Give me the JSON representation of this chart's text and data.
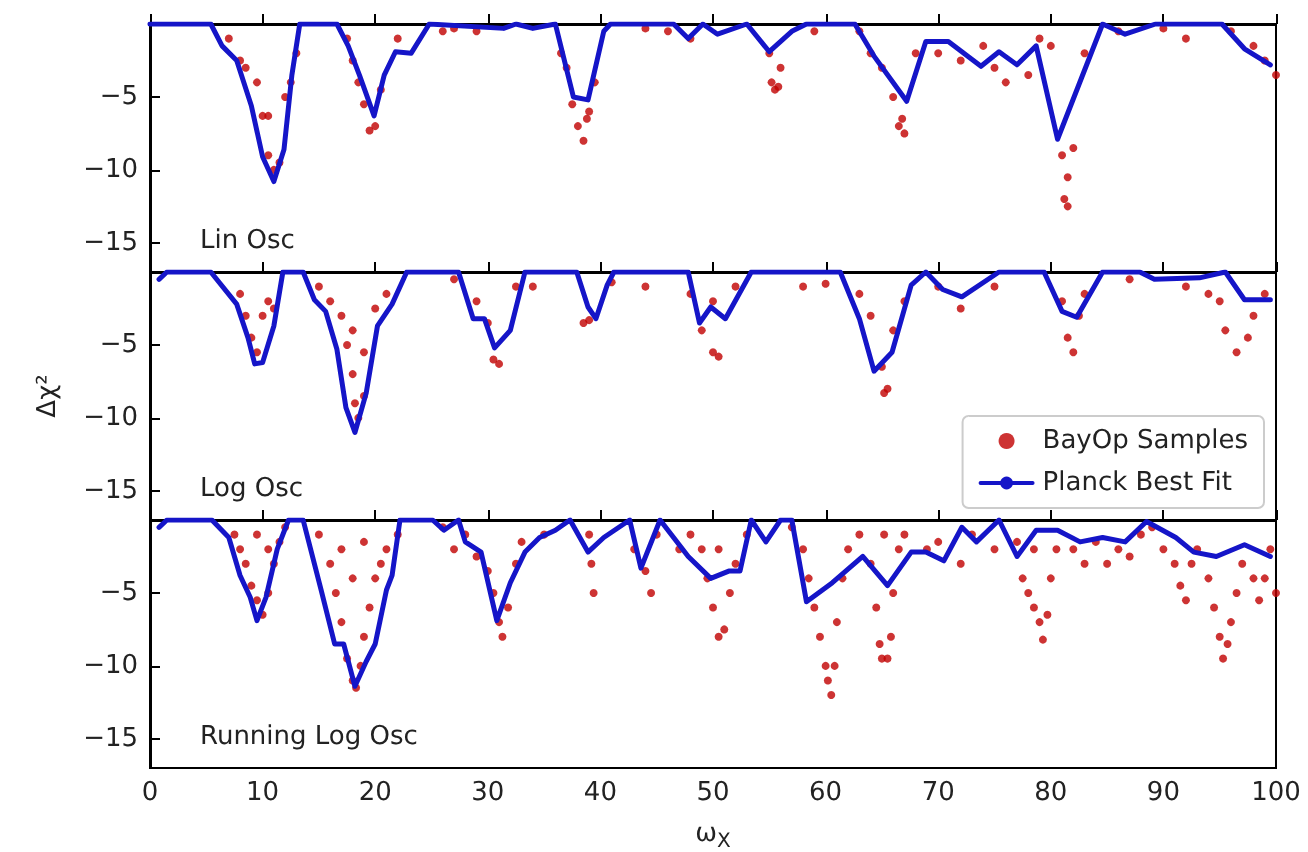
{
  "chart_data": [
    {
      "type": "scatter",
      "xlim": [
        0,
        100
      ],
      "xticks": [
        0,
        10,
        20,
        30,
        40,
        50,
        60,
        70,
        80,
        90,
        100
      ],
      "ylim": [
        -17,
        0
      ],
      "yticks": [
        -5,
        -10,
        -15
      ],
      "tick_labels": "y",
      "annotations": [
        "Lin Osc"
      ],
      "series": [
        {
          "type": "scatter",
          "color": "#c00000",
          "x": [
            7,
            8,
            8.5,
            9.5,
            10,
            10.5,
            10.5,
            11,
            11.5,
            12,
            12.5,
            13,
            17.5,
            18,
            18.5,
            19.5,
            20,
            20.5,
            19,
            22,
            26,
            27,
            29,
            36.5,
            37,
            37.5,
            38,
            38.5,
            39,
            38.8,
            39.5,
            44,
            46,
            48,
            55,
            55.2,
            55.5,
            55.8,
            56,
            59,
            63,
            64,
            65,
            66,
            66.5,
            67,
            66.8,
            68,
            70,
            72,
            74,
            75,
            76,
            78,
            79,
            80,
            81,
            81.5,
            81.2,
            81.5,
            82,
            83,
            86,
            90,
            92,
            96,
            98,
            99,
            100
          ],
          "values": [
            -1,
            -2.5,
            -3,
            -4,
            -6.3,
            -6.3,
            -9,
            -10,
            -9.5,
            -5,
            -4,
            -2,
            -1,
            -2.5,
            -4,
            -7.3,
            -7,
            -4.5,
            -5.5,
            -1,
            -0.5,
            -0.3,
            -0.5,
            -2,
            -3,
            -5.5,
            -7,
            -8,
            -6,
            -6.5,
            -4,
            -0.3,
            -0.5,
            -1,
            -2,
            -4,
            -4.5,
            -4.3,
            -3,
            -0.5,
            -0.5,
            -2,
            -3,
            -5,
            -7,
            -7.5,
            -6.5,
            -2,
            -2,
            -2.5,
            -1.5,
            -3,
            -4,
            -3.5,
            -1,
            -1.5,
            -9,
            -10.5,
            -12,
            -12.5,
            -8.5,
            -2,
            -0.5,
            -0.3,
            -1,
            -0.5,
            -1.5,
            -2.5,
            -3.5
          ]
        },
        {
          "type": "line",
          "color": "#1515c8",
          "x": [
            0,
            5.4,
            6.4,
            7.7,
            9,
            10,
            11,
            11.9,
            12.6,
            13.3,
            16.6,
            17.6,
            18.6,
            19.9,
            20.8,
            21.8,
            23.2,
            24.8,
            31.4,
            32.5,
            34,
            36,
            37.6,
            38.9,
            40.3,
            40.9,
            46.5,
            47.8,
            49.1,
            50.4,
            53,
            55,
            57,
            58.3,
            62.6,
            64.3,
            67.2,
            68.9,
            70.9,
            73.8,
            75.4,
            77,
            78.7,
            80.6,
            84.6,
            86.6,
            89.3,
            95.2,
            97.2,
            99.5
          ],
          "values": [
            0,
            0,
            -1.5,
            -2.5,
            -5.6,
            -9.1,
            -10.8,
            -8.6,
            -3.5,
            0,
            0,
            -1.5,
            -3.5,
            -6.3,
            -3.5,
            -1.9,
            -2,
            0,
            -0.3,
            0,
            -0.3,
            0,
            -5,
            -5.2,
            -0.5,
            0,
            0,
            -1,
            0,
            -0.7,
            0,
            -1.9,
            -0.5,
            0,
            0,
            -2.2,
            -5.3,
            -1.2,
            -1.2,
            -2.9,
            -1.9,
            -2.8,
            -1.5,
            -7.9,
            0,
            -0.7,
            0,
            0,
            -1.7,
            -2.8
          ]
        }
      ]
    },
    {
      "type": "scatter",
      "xlim": [
        0,
        100
      ],
      "xticks": [
        0,
        10,
        20,
        30,
        40,
        50,
        60,
        70,
        80,
        90,
        100
      ],
      "ylim": [
        -17,
        0
      ],
      "yticks": [
        -5,
        -10,
        -15
      ],
      "tick_labels": "y",
      "ylabel": "Δχ²",
      "annotations": [
        "Log Osc"
      ],
      "legend": "bottom right",
      "series": [
        {
          "name": "BayOp Samples",
          "type": "scatter",
          "color": "#c00000",
          "x": [
            8,
            8.5,
            9,
            9.5,
            10,
            10.5,
            11,
            15,
            16,
            17,
            17.5,
            18,
            18.2,
            18.5,
            19,
            19,
            18,
            20,
            21,
            27,
            29,
            30,
            30.5,
            31,
            32.5,
            34,
            38.5,
            39,
            41,
            44,
            48,
            49,
            50,
            50.5,
            50,
            52,
            58,
            60,
            63,
            64,
            65,
            65.5,
            65.2,
            66,
            67,
            70,
            72,
            75,
            81,
            81.5,
            82,
            82.5,
            83,
            87,
            92,
            94,
            95,
            95.5,
            96.5,
            97.5,
            98,
            99
          ],
          "values": [
            -1.5,
            -3,
            -4.5,
            -5.5,
            -3,
            -2,
            -2.5,
            -1,
            -2,
            -3,
            -5,
            -7,
            -9,
            -10,
            -8.5,
            -5.5,
            -4,
            -2.5,
            -1.5,
            -0.5,
            -2,
            -3.5,
            -6,
            -6.3,
            -1,
            -1,
            -3.5,
            -3.3,
            -0.7,
            -1,
            -1.5,
            -4,
            -5.5,
            -5.8,
            -2,
            -1,
            -1,
            -0.8,
            -1.5,
            -3,
            -6.5,
            -8,
            -8.3,
            -4,
            -2,
            -1,
            -2.5,
            -1,
            -2,
            -4.5,
            -5.5,
            -3,
            -1.5,
            -0.5,
            -1,
            -1.5,
            -2,
            -4,
            -5.5,
            -4.5,
            -3,
            -1.5
          ]
        },
        {
          "name": "Planck Best Fit",
          "type": "line",
          "color": "#1515c8",
          "x": [
            0.8,
            1.5,
            5.4,
            7.7,
            8.7,
            9.3,
            10,
            11,
            11.8,
            13.6,
            14.6,
            15.6,
            16.6,
            17.4,
            18.2,
            19.2,
            20.2,
            21.5,
            22.8,
            27.4,
            28.7,
            29.7,
            30.6,
            32,
            33.3,
            37.9,
            38.9,
            39.6,
            40.6,
            41.2,
            47.8,
            48.8,
            49.8,
            51.1,
            53.4,
            61.3,
            63,
            64.3,
            65.9,
            67.6,
            68.9,
            70.4,
            72.1,
            75.4,
            79.4,
            81,
            82.3,
            84.6,
            87.9,
            89.2,
            93.2,
            95.5,
            97.2,
            99.5
          ],
          "values": [
            -0.5,
            0,
            0,
            -2.2,
            -4.5,
            -6.3,
            -6.2,
            -3.7,
            0,
            0,
            -1.9,
            -2.7,
            -5.3,
            -9.3,
            -11,
            -8.3,
            -3.7,
            -2.2,
            0,
            0,
            -3.2,
            -3.2,
            -5.2,
            -4,
            0,
            0,
            -2.4,
            -3.2,
            -0.9,
            0,
            0,
            -3.5,
            -2.4,
            -3.2,
            0,
            0,
            -3.2,
            -6.8,
            -5.5,
            -0.9,
            0,
            -1.2,
            -1.7,
            0,
            0,
            -2.7,
            -3.1,
            0,
            0,
            -0.5,
            -0.4,
            0,
            -1.9,
            -1.9
          ]
        }
      ]
    },
    {
      "type": "scatter",
      "xlim": [
        0,
        100
      ],
      "xticks": [
        0,
        10,
        20,
        30,
        40,
        50,
        60,
        70,
        80,
        90,
        100
      ],
      "ylim": [
        -17,
        0
      ],
      "yticks": [
        -5,
        -10,
        -15
      ],
      "xlabel": "ω$_{X}$",
      "annotations": [
        "Running Log Osc"
      ],
      "series": [
        {
          "type": "scatter",
          "color": "#c00000",
          "x": [
            7.5,
            8,
            8.5,
            9,
            9.5,
            10,
            10.5,
            11,
            11.5,
            12,
            9.5,
            10.5,
            15,
            16,
            16.5,
            17,
            17.5,
            18,
            18.3,
            18.7,
            19,
            19.5,
            20,
            20.5,
            21,
            22,
            17,
            19,
            18,
            26,
            27,
            28,
            29,
            30,
            30.5,
            31,
            31.3,
            31.8,
            32.5,
            33,
            35,
            39,
            39.2,
            39.4,
            43,
            44,
            44.5,
            45,
            47,
            48,
            49,
            49.5,
            50,
            50.5,
            51,
            51.5,
            52,
            53,
            50.5,
            57,
            58,
            58.5,
            59,
            59.5,
            60,
            60.2,
            60.5,
            60.8,
            61,
            61.5,
            62,
            63,
            64,
            64.5,
            64.8,
            65,
            65.5,
            65.8,
            66,
            66.5,
            65.2,
            67,
            69,
            70,
            72,
            73,
            75,
            77,
            77.5,
            78,
            78.5,
            79,
            79.3,
            79.7,
            80,
            80.5,
            78.5,
            82,
            83,
            84,
            85,
            86,
            87,
            88,
            89,
            90,
            91,
            91.5,
            92,
            92.5,
            93,
            94,
            94.5,
            95,
            95.3,
            95.7,
            96,
            96.5,
            97,
            98,
            98.5,
            99,
            99.5,
            100
          ],
          "values": [
            -1,
            -2,
            -3,
            -4.5,
            -5.5,
            -6.5,
            -5,
            -3,
            -1.5,
            -0.5,
            -1,
            -2,
            -1,
            -3,
            -5,
            -7,
            -9.5,
            -11,
            -11.5,
            -10,
            -8,
            -6,
            -4,
            -3,
            -2,
            -1,
            -2,
            -1.5,
            -4,
            -0.5,
            -2,
            -1,
            -2.5,
            -3.5,
            -5,
            -7,
            -8,
            -6,
            -3,
            -1.5,
            -1,
            -1,
            -3,
            -5,
            -2,
            -3.5,
            -5,
            -1,
            -2,
            -1,
            -2,
            -4,
            -6,
            -8,
            -7.5,
            -5,
            -3,
            -1,
            -2,
            -0.5,
            -2,
            -4,
            -6,
            -8,
            -10,
            -11,
            -12,
            -10,
            -7,
            -4,
            -2,
            -1,
            -3,
            -6,
            -8.5,
            -9.5,
            -9.5,
            -8,
            -5,
            -2,
            -1,
            -1,
            -2,
            -1.5,
            -3,
            -1,
            -2,
            -1.5,
            -4,
            -5,
            -6,
            -7,
            -8.2,
            -6.5,
            -4,
            -2,
            -2,
            -2,
            -3,
            -1.5,
            -3,
            -2,
            -2.5,
            -1,
            -0.5,
            -2,
            -3,
            -4.5,
            -5.5,
            -3,
            -2,
            -4,
            -6,
            -8,
            -9.5,
            -8.5,
            -7,
            -5,
            -3,
            -4,
            -5.5,
            -4,
            -2,
            -5
          ]
        },
        {
          "type": "line",
          "color": "#1515c8",
          "x": [
            0.8,
            1.5,
            5.5,
            7,
            8,
            8.9,
            9.5,
            10.3,
            11.3,
            12.3,
            13.6,
            15.2,
            16.4,
            17.2,
            18.2,
            19.2,
            20,
            21,
            21.5,
            22.2,
            25.1,
            26.1,
            27.4,
            28,
            29.4,
            30.8,
            32,
            33.3,
            34.6,
            36,
            37.3,
            38.9,
            40.3,
            42.6,
            43.6,
            45.3,
            47.8,
            49.8,
            51.4,
            52.4,
            53.4,
            54.7,
            56,
            57,
            58.3,
            60.6,
            63.3,
            65.5,
            67.6,
            68.9,
            70.5,
            72.1,
            73.4,
            75.4,
            77,
            78.7,
            80.6,
            82.6,
            84.6,
            86.6,
            88.5,
            91.1,
            92.7,
            94.7,
            97.2,
            99.5
          ],
          "values": [
            -0.5,
            0,
            0,
            -1.2,
            -3.8,
            -5.3,
            -6.9,
            -5.3,
            -2,
            0,
            0,
            -4.8,
            -8.5,
            -8.5,
            -11.4,
            -9.7,
            -8.5,
            -4.8,
            -3.8,
            0,
            0,
            -0.7,
            0,
            -1.5,
            -2.2,
            -6.9,
            -4.3,
            -2.2,
            -1.2,
            -0.7,
            0,
            -2.2,
            -1.2,
            0,
            -3.3,
            0,
            -2.5,
            -4,
            -3.5,
            -3.5,
            0,
            -1.5,
            0,
            0,
            -5.6,
            -4.3,
            -2.5,
            -4.5,
            -2.2,
            -2.2,
            -2.8,
            -0.5,
            -1.5,
            0,
            -2.5,
            -0.7,
            -0.7,
            -1.5,
            -1.2,
            -1.5,
            -0.1,
            -1.2,
            -2.2,
            -2.5,
            -1.7,
            -2.5
          ]
        }
      ]
    }
  ]
}
